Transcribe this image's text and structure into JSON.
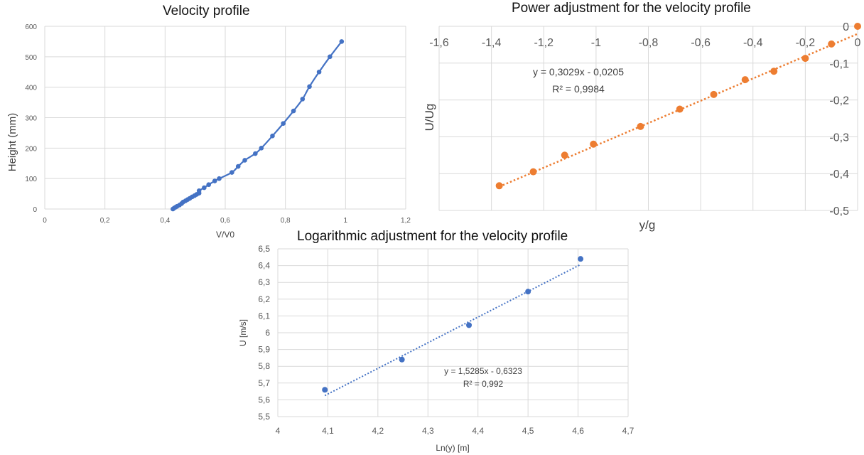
{
  "chart_data": [
    {
      "type": "line",
      "title": "Velocity profile",
      "xlabel": "V/V0",
      "ylabel": "Height (mm)",
      "xlim": [
        0,
        1.2
      ],
      "ylim": [
        0,
        600
      ],
      "x_ticks": [
        "0",
        "0,2",
        "0,4",
        "0,6",
        "0,8",
        "1",
        "1,2"
      ],
      "y_ticks": [
        "0",
        "100",
        "200",
        "300",
        "400",
        "500",
        "600"
      ],
      "grid": true,
      "series": [
        {
          "color": "#4472c4",
          "x": [
            0.426,
            0.43,
            0.435,
            0.44,
            0.448,
            0.455,
            0.46,
            0.468,
            0.475,
            0.482,
            0.49,
            0.498,
            0.505,
            0.513,
            0.513,
            0.53,
            0.545,
            0.565,
            0.58,
            0.622,
            0.643,
            0.665,
            0.7,
            0.72,
            0.757,
            0.793,
            0.827,
            0.857,
            0.88,
            0.912,
            0.948,
            0.987
          ],
          "y": [
            0,
            3,
            6,
            9,
            13,
            18,
            23,
            27,
            31,
            35,
            40,
            44,
            48,
            52,
            60,
            70,
            80,
            92,
            100,
            120,
            140,
            160,
            182,
            200,
            240,
            281,
            322,
            361,
            402,
            450,
            500,
            550
          ]
        }
      ]
    },
    {
      "type": "scatter",
      "title": "Power adjustment for the velocity profile",
      "xlabel": "y/g",
      "ylabel": "U/Ug",
      "xlim": [
        -1.6,
        0
      ],
      "ylim": [
        -0.5,
        0
      ],
      "x_ticks": [
        "-1,6",
        "-1,4",
        "-1,2",
        "-1",
        "-0,8",
        "-0,6",
        "-0,4",
        "-0,2",
        "0"
      ],
      "y_ticks": [
        "0",
        "-0,1",
        "-0,2",
        "-0,3",
        "-0,4",
        "-0,5"
      ],
      "grid": true,
      "annotation": [
        "y = 0,3029x - 0,0205",
        "R² = 0,9984"
      ],
      "trendline": {
        "slope": 0.3029,
        "intercept": -0.0205,
        "style": "dotted",
        "x_range": [
          -1.37,
          0
        ]
      },
      "series": [
        {
          "color": "#ed7d31",
          "x": [
            -1.37,
            -1.24,
            -1.12,
            -1.01,
            -0.83,
            -0.68,
            -0.55,
            -0.43,
            -0.32,
            -0.2,
            -0.1,
            0
          ],
          "y": [
            -0.433,
            -0.395,
            -0.35,
            -0.32,
            -0.272,
            -0.225,
            -0.185,
            -0.145,
            -0.122,
            -0.087,
            -0.048,
            0
          ]
        }
      ]
    },
    {
      "type": "scatter",
      "title": "Logarithmic adjustment for the velocity profile",
      "xlabel": "Ln(y) [m]",
      "ylabel": "U [m/s]",
      "xlim": [
        4,
        4.7
      ],
      "ylim": [
        5.5,
        6.5
      ],
      "x_ticks": [
        "4",
        "4,1",
        "4,2",
        "4,3",
        "4,4",
        "4,5",
        "4,6",
        "4,7"
      ],
      "y_ticks": [
        "5,5",
        "5,6",
        "5,7",
        "5,8",
        "5,9",
        "6",
        "6,1",
        "6,2",
        "6,3",
        "6,4",
        "6,5"
      ],
      "grid": true,
      "annotation": [
        "y = 1,5285x - 0,6323",
        "R² = 0,992"
      ],
      "trendline": {
        "slope": 1.5285,
        "intercept": -0.6323,
        "style": "dotted",
        "x_range": [
          4.094,
          4.605
        ]
      },
      "series": [
        {
          "color": "#4472c4",
          "x": [
            4.094,
            4.248,
            4.382,
            4.5,
            4.605
          ],
          "y": [
            5.66,
            5.84,
            6.045,
            6.245,
            6.44
          ]
        }
      ]
    }
  ]
}
